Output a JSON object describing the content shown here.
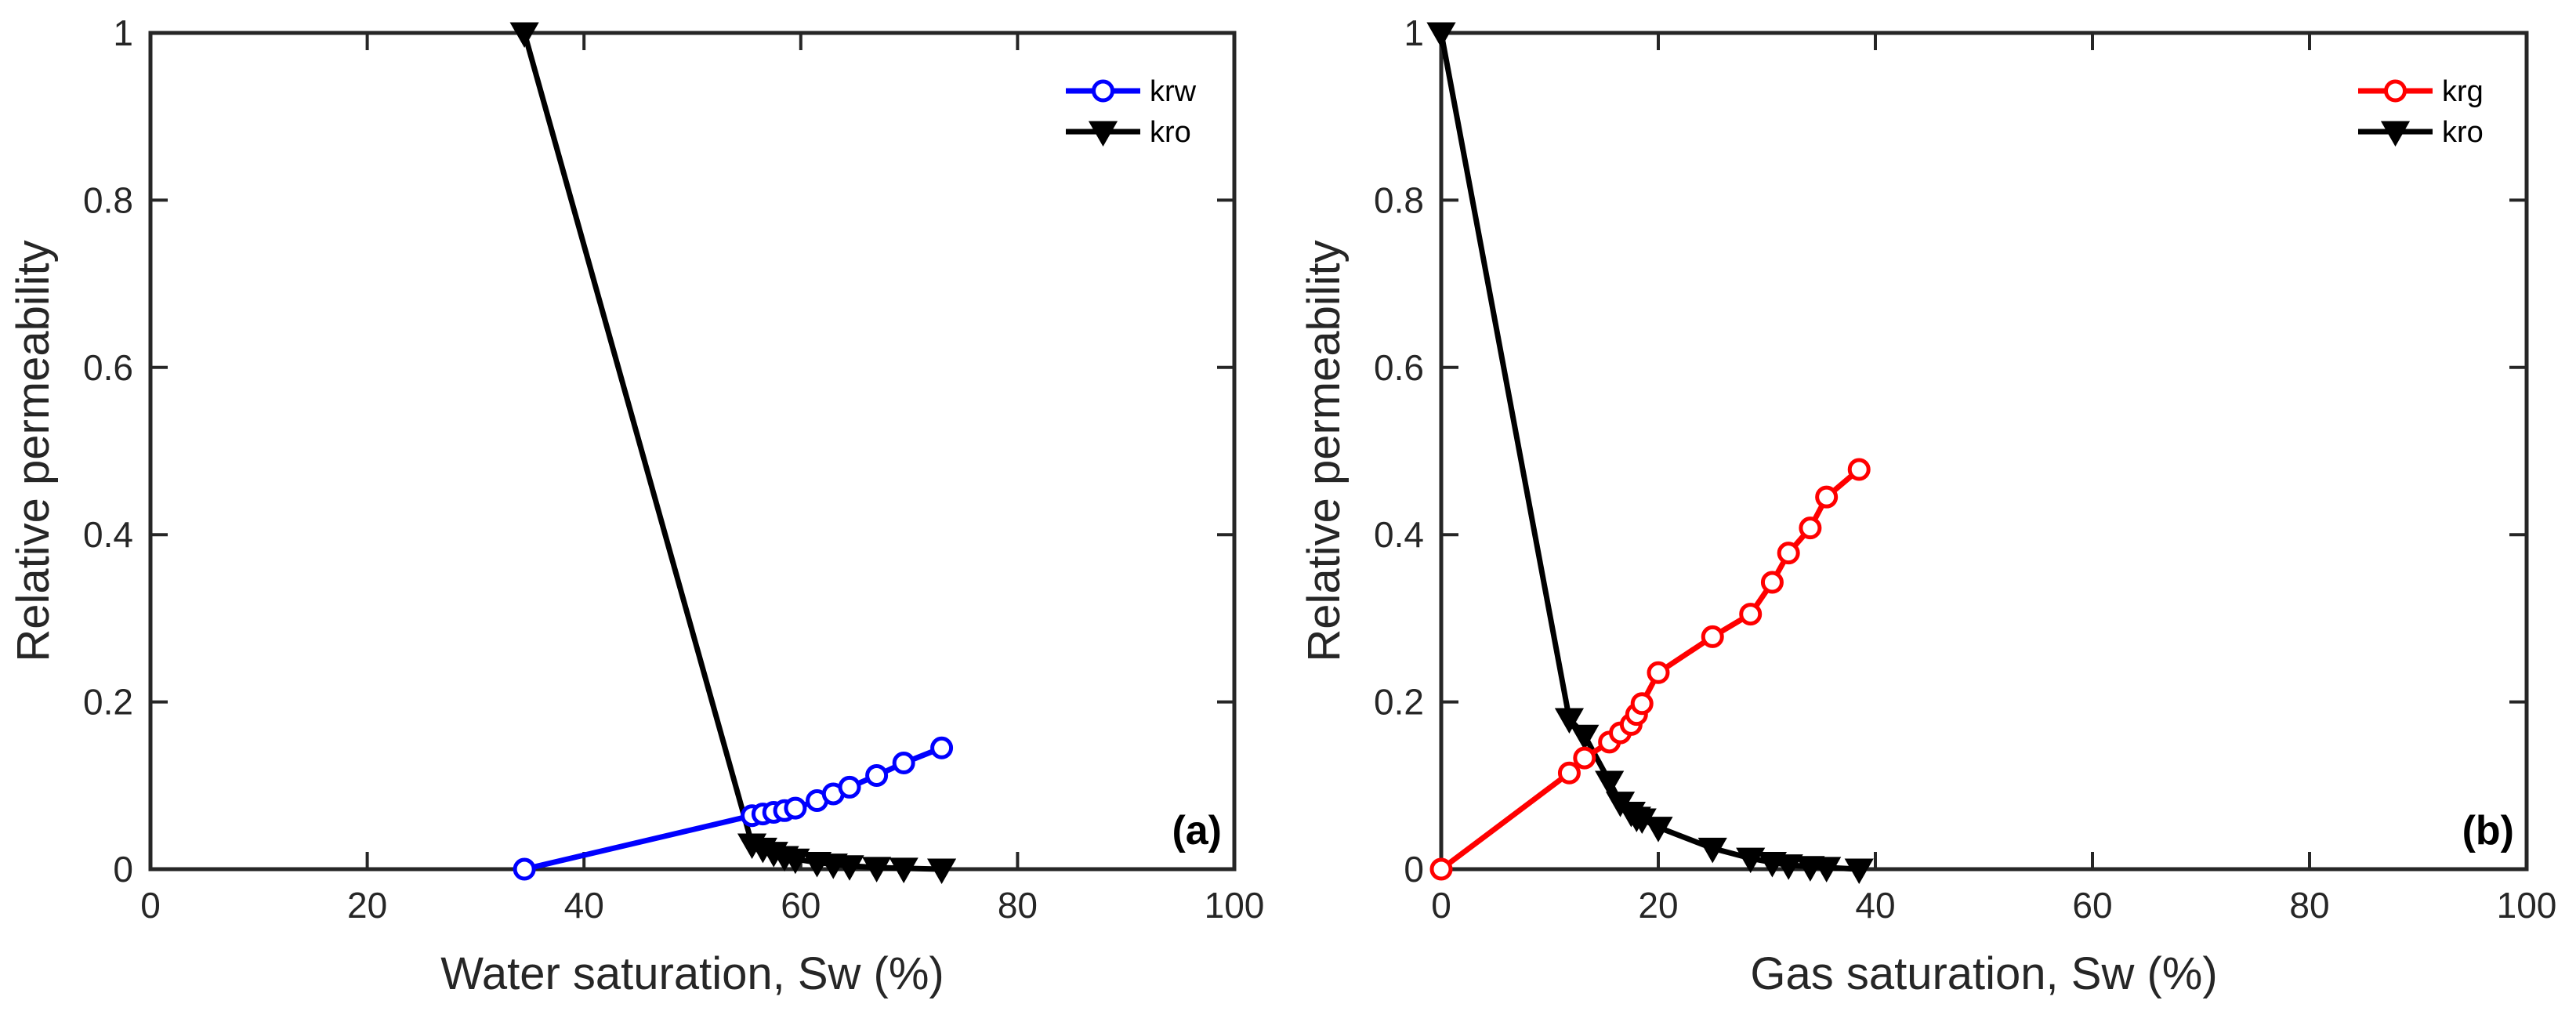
{
  "colors": {
    "krw": "#0000ff",
    "krg": "#ff0000",
    "kro": "#000000",
    "axis": "#262626"
  },
  "chart_data": [
    {
      "type": "line",
      "panel_label": "(a)",
      "xlabel": "Water saturation, Sw  (%)",
      "ylabel": "Relative permeability",
      "xlim": [
        0,
        100
      ],
      "ylim": [
        0,
        1
      ],
      "xticks": [
        0,
        20,
        40,
        60,
        80,
        100
      ],
      "yticks": [
        0,
        0.2,
        0.4,
        0.6,
        0.8,
        1
      ],
      "xtick_labels": [
        "0",
        "20",
        "40",
        "60",
        "80",
        "100"
      ],
      "ytick_labels": [
        "0",
        "0.2",
        "0.4",
        "0.6",
        "0.8",
        "1"
      ],
      "legend_position": "top-right",
      "series": [
        {
          "name": "krw",
          "color": "#0000ff",
          "marker": "circle",
          "x": [
            34.5,
            55.5,
            56.5,
            57.5,
            58.5,
            59.5,
            61.5,
            63.0,
            64.5,
            67.0,
            69.5,
            73.0
          ],
          "y": [
            0.0,
            0.064,
            0.066,
            0.068,
            0.07,
            0.073,
            0.082,
            0.09,
            0.098,
            0.112,
            0.127,
            0.145
          ]
        },
        {
          "name": "kro",
          "color": "#000000",
          "marker": "triangle-down",
          "x": [
            34.5,
            55.5,
            56.5,
            57.5,
            58.5,
            59.5,
            61.5,
            63.0,
            64.5,
            67.0,
            69.5,
            73.0
          ],
          "y": [
            1.0,
            0.03,
            0.025,
            0.02,
            0.015,
            0.012,
            0.008,
            0.006,
            0.004,
            0.002,
            0.001,
            0.0
          ]
        }
      ]
    },
    {
      "type": "line",
      "panel_label": "(b)",
      "xlabel": "Gas saturation, Sw  (%)",
      "ylabel": "Relative permeability",
      "xlim": [
        0,
        100
      ],
      "ylim": [
        0,
        1
      ],
      "xticks": [
        0,
        20,
        40,
        60,
        80,
        100
      ],
      "yticks": [
        0,
        0.2,
        0.4,
        0.6,
        0.8,
        1
      ],
      "xtick_labels": [
        "0",
        "20",
        "40",
        "60",
        "80",
        "100"
      ],
      "ytick_labels": [
        "0",
        "0.2",
        "0.4",
        "0.6",
        "0.8",
        "1"
      ],
      "legend_position": "top-right",
      "series": [
        {
          "name": "krg",
          "color": "#ff0000",
          "marker": "circle",
          "x": [
            0.0,
            11.8,
            13.2,
            15.5,
            16.5,
            17.5,
            18.0,
            18.5,
            20.0,
            25.0,
            28.5,
            30.5,
            32.0,
            34.0,
            35.5,
            38.5
          ],
          "y": [
            0.0,
            0.115,
            0.133,
            0.152,
            0.163,
            0.173,
            0.185,
            0.198,
            0.235,
            0.278,
            0.305,
            0.343,
            0.378,
            0.408,
            0.445,
            0.478
          ]
        },
        {
          "name": "kro",
          "color": "#000000",
          "marker": "triangle-down",
          "x": [
            0.0,
            11.8,
            13.2,
            15.5,
            16.5,
            17.5,
            18.0,
            18.5,
            20.0,
            25.0,
            28.5,
            30.5,
            32.0,
            34.0,
            35.5,
            38.5
          ],
          "y": [
            1.0,
            0.18,
            0.16,
            0.105,
            0.08,
            0.068,
            0.062,
            0.06,
            0.05,
            0.025,
            0.013,
            0.008,
            0.005,
            0.003,
            0.002,
            0.0
          ]
        }
      ]
    }
  ]
}
